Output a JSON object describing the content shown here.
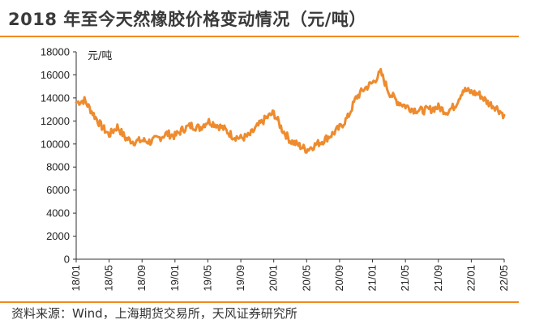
{
  "header": {
    "title": "2018 年至今天然橡胶价格变动情况（元/吨）"
  },
  "footer": {
    "source": "资料来源：Wind，上海期货交易所，天风证券研究所"
  },
  "colors": {
    "accent": "#f08a1e",
    "line": "#ee8b2e"
  },
  "chart_data": {
    "type": "line",
    "title": "2018 年至今天然橡胶价格变动情况（元/吨）",
    "ylabel": "元/吨",
    "xlabel": "",
    "ylim": [
      0,
      18000
    ],
    "yticks": [
      0,
      2000,
      4000,
      6000,
      8000,
      10000,
      12000,
      14000,
      16000,
      18000
    ],
    "yticklabels": [
      "0",
      "2000",
      "4000",
      "6000",
      "8000",
      "10000",
      "12000",
      "14000",
      "16000",
      "18000"
    ],
    "xticklabels": [
      "18/01",
      "18/05",
      "18/09",
      "19/01",
      "19/05",
      "19/09",
      "20/01",
      "20/05",
      "20/09",
      "21/01",
      "21/05",
      "21/09",
      "22/01",
      "22/05"
    ],
    "grid": false,
    "legend": "none",
    "series": [
      {
        "x": [
          "2018-01",
          "2018-02",
          "2018-03",
          "2018-04",
          "2018-05",
          "2018-06",
          "2018-07",
          "2018-08",
          "2018-09",
          "2018-10",
          "2018-11",
          "2018-12",
          "2019-01",
          "2019-02",
          "2019-03",
          "2019-04",
          "2019-05",
          "2019-06",
          "2019-07",
          "2019-08",
          "2019-09",
          "2019-10",
          "2019-11",
          "2019-12",
          "2020-01",
          "2020-02",
          "2020-03",
          "2020-04",
          "2020-05",
          "2020-06",
          "2020-07",
          "2020-08",
          "2020-09",
          "2020-10",
          "2020-11",
          "2020-12",
          "2021-01",
          "2021-02",
          "2021-03",
          "2021-04",
          "2021-05",
          "2021-06",
          "2021-07",
          "2021-08",
          "2021-09",
          "2021-10",
          "2021-11",
          "2021-12",
          "2022-01",
          "2022-02",
          "2022-03",
          "2022-04",
          "2022-05"
        ],
        "values": [
          13600,
          13800,
          12700,
          11600,
          10800,
          11500,
          10500,
          10200,
          10300,
          10200,
          10500,
          10900,
          10700,
          11300,
          11600,
          11400,
          12000,
          11700,
          11300,
          10700,
          10500,
          10700,
          11500,
          12200,
          12700,
          11300,
          10300,
          9900,
          9500,
          9900,
          10300,
          10800,
          11400,
          12300,
          14000,
          14800,
          15300,
          16200,
          14500,
          13700,
          13300,
          13000,
          12900,
          13000,
          13200,
          12800,
          13300,
          14700,
          14500,
          14300,
          13600,
          13200,
          12500
        ]
      }
    ]
  }
}
